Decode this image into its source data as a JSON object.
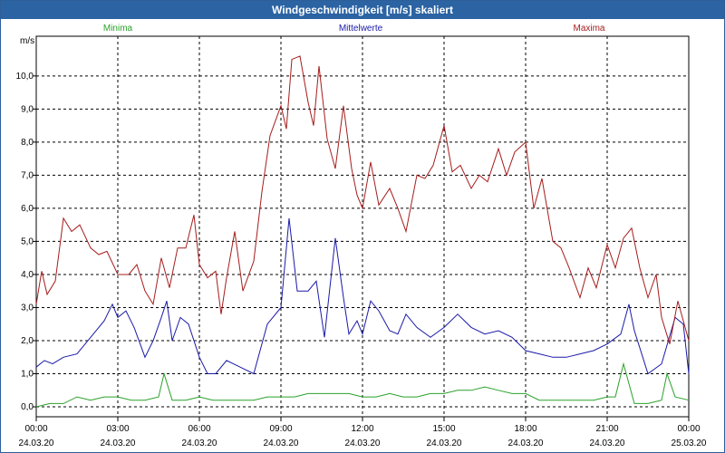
{
  "chart_data": {
    "type": "line",
    "title": "Windgeschwindigkeit [m/s] skaliert",
    "ylabel": "m/s",
    "ylim": [
      -0.3,
      11.2
    ],
    "yticks": [
      "0,0",
      "1,0",
      "2,0",
      "3,0",
      "4,0",
      "5,0",
      "6,0",
      "7,0",
      "8,0",
      "9,0",
      "10,0"
    ],
    "xlim": [
      0,
      24
    ],
    "xticks": [
      {
        "time": "00:00",
        "date": "24.03.20"
      },
      {
        "time": "03:00",
        "date": "24.03.20"
      },
      {
        "time": "06:00",
        "date": "24.03.20"
      },
      {
        "time": "09:00",
        "date": "24.03.20"
      },
      {
        "time": "12:00",
        "date": "24.03.20"
      },
      {
        "time": "15:00",
        "date": "24.03.20"
      },
      {
        "time": "18:00",
        "date": "24.03.20"
      },
      {
        "time": "21:00",
        "date": "24.03.20"
      },
      {
        "time": "00:00",
        "date": "25.03.20"
      }
    ],
    "legend_position": "top",
    "series": [
      {
        "name": "Minima",
        "color": "#2aa12a",
        "x": [
          0,
          0.5,
          1,
          1.5,
          2,
          2.5,
          3,
          3.5,
          4,
          4.5,
          4.7,
          5,
          5.5,
          6,
          6.5,
          7,
          7.5,
          8,
          8.5,
          9,
          9.5,
          10,
          10.5,
          11,
          11.5,
          12,
          12.5,
          13,
          13.5,
          14,
          14.5,
          15,
          15.5,
          16,
          16.5,
          17,
          17.5,
          18,
          18.5,
          19,
          19.5,
          20,
          20.5,
          21,
          21.3,
          21.6,
          22,
          22.5,
          23,
          23.2,
          23.5,
          24
        ],
        "values": [
          0.0,
          0.1,
          0.1,
          0.3,
          0.2,
          0.3,
          0.3,
          0.2,
          0.2,
          0.3,
          1.0,
          0.2,
          0.2,
          0.3,
          0.2,
          0.2,
          0.2,
          0.2,
          0.3,
          0.3,
          0.3,
          0.4,
          0.4,
          0.4,
          0.4,
          0.3,
          0.3,
          0.4,
          0.3,
          0.3,
          0.4,
          0.4,
          0.5,
          0.5,
          0.6,
          0.5,
          0.4,
          0.4,
          0.2,
          0.2,
          0.2,
          0.2,
          0.2,
          0.3,
          0.3,
          1.3,
          0.1,
          0.1,
          0.2,
          1.0,
          0.3,
          0.2
        ]
      },
      {
        "name": "Mittelwerte",
        "color": "#1a1aa8",
        "x": [
          0,
          0.3,
          0.6,
          1,
          1.5,
          2,
          2.5,
          2.8,
          3,
          3.3,
          3.6,
          4,
          4.3,
          4.6,
          4.8,
          5,
          5.3,
          5.6,
          6,
          6.3,
          6.6,
          7,
          7.5,
          8,
          8.5,
          9,
          9.3,
          9.6,
          10,
          10.3,
          10.6,
          11,
          11.3,
          11.5,
          11.8,
          12,
          12.3,
          12.6,
          13,
          13.3,
          13.6,
          14,
          14.5,
          15,
          15.5,
          16,
          16.5,
          17,
          17.5,
          18,
          18.5,
          19,
          19.5,
          20,
          20.5,
          21,
          21.5,
          21.8,
          22,
          22.5,
          23,
          23.5,
          23.8,
          24
        ],
        "values": [
          1.2,
          1.4,
          1.3,
          1.5,
          1.6,
          2.1,
          2.6,
          3.1,
          2.7,
          2.9,
          2.4,
          1.5,
          2.0,
          2.7,
          3.2,
          2.0,
          2.7,
          2.5,
          1.5,
          1.0,
          1.0,
          1.4,
          1.2,
          1.0,
          2.5,
          3.0,
          5.7,
          3.5,
          3.5,
          3.8,
          2.1,
          5.1,
          3.3,
          2.2,
          2.6,
          2.2,
          3.2,
          2.9,
          2.3,
          2.2,
          2.8,
          2.4,
          2.1,
          2.4,
          2.8,
          2.4,
          2.2,
          2.3,
          2.1,
          1.7,
          1.6,
          1.5,
          1.5,
          1.6,
          1.7,
          1.9,
          2.2,
          3.1,
          2.3,
          1.0,
          1.3,
          2.7,
          2.5,
          1.0
        ]
      },
      {
        "name": "Maxima",
        "color": "#a61c1c",
        "x": [
          0,
          0.2,
          0.4,
          0.7,
          1,
          1.3,
          1.6,
          2,
          2.3,
          2.6,
          3,
          3.4,
          3.7,
          4,
          4.3,
          4.6,
          4.9,
          5.2,
          5.5,
          5.8,
          6,
          6.3,
          6.6,
          6.8,
          7,
          7.3,
          7.6,
          8,
          8.3,
          8.6,
          9,
          9.2,
          9.4,
          9.7,
          10,
          10.2,
          10.4,
          10.7,
          11,
          11.3,
          11.6,
          11.8,
          12,
          12.3,
          12.6,
          13,
          13.3,
          13.6,
          14,
          14.3,
          14.6,
          15,
          15.3,
          15.6,
          16,
          16.3,
          16.6,
          17,
          17.3,
          17.6,
          18,
          18.3,
          18.6,
          19,
          19.3,
          19.6,
          20,
          20.3,
          20.6,
          21,
          21.3,
          21.6,
          21.9,
          22.2,
          22.5,
          22.8,
          23,
          23.3,
          23.6,
          24
        ],
        "values": [
          3.1,
          4.1,
          3.4,
          3.8,
          5.7,
          5.3,
          5.5,
          4.8,
          4.6,
          4.7,
          4.0,
          4.0,
          4.3,
          3.5,
          3.1,
          4.5,
          3.6,
          4.8,
          4.8,
          5.8,
          4.3,
          3.9,
          4.1,
          2.8,
          3.9,
          5.3,
          3.5,
          4.4,
          6.5,
          8.2,
          9.1,
          8.4,
          10.5,
          10.6,
          9.2,
          8.5,
          10.3,
          8.1,
          7.2,
          9.1,
          7.2,
          6.4,
          6.0,
          7.4,
          6.1,
          6.6,
          6.0,
          5.3,
          7.0,
          6.9,
          7.3,
          8.5,
          7.1,
          7.3,
          6.6,
          7.0,
          6.8,
          7.8,
          7.0,
          7.7,
          8.0,
          6.0,
          6.9,
          5.0,
          4.8,
          4.2,
          3.3,
          4.2,
          3.6,
          4.9,
          4.2,
          5.1,
          5.4,
          4.2,
          3.3,
          4.0,
          2.7,
          1.9,
          3.2,
          2.0
        ]
      }
    ]
  }
}
